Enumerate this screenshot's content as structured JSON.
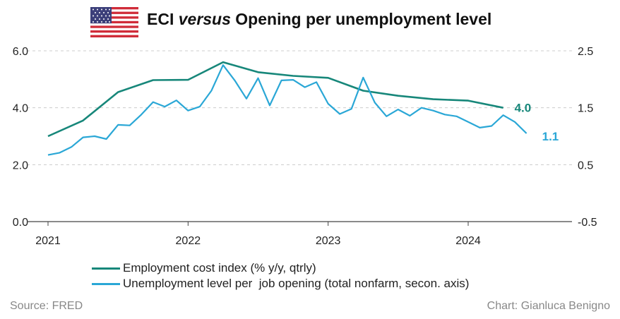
{
  "title_prefix": "ECI",
  "title_italic": "versus",
  "title_suffix": "Opening per unemployment level",
  "source": "Source: FRED",
  "credit": "Chart: Gianluca Benigno",
  "colors": {
    "eci": "#17877a",
    "unemp": "#2aa7d6",
    "grid": "#cccccc"
  },
  "chart_data": {
    "type": "line",
    "x_ticks": [
      "2021",
      "2022",
      "2023",
      "2024"
    ],
    "y_left_ticks": [
      "0.0",
      "2.0",
      "4.0",
      "6.0"
    ],
    "y_right_ticks": [
      "-0.5",
      "0.5",
      "1.5",
      "2.5"
    ],
    "y_left_lim": [
      0,
      6
    ],
    "y_right_lim": [
      -0.5,
      2.5
    ],
    "grid": true,
    "legend_position": "bottom",
    "series": [
      {
        "name": "Employment cost index (% y/y, qtrly)",
        "axis": "left",
        "end_label": "4.0",
        "x": [
          "2021-01",
          "2021-04",
          "2021-07",
          "2021-10",
          "2022-01",
          "2022-04",
          "2022-07",
          "2022-10",
          "2023-01",
          "2023-04",
          "2023-07",
          "2023-10",
          "2024-01",
          "2024-04"
        ],
        "values": [
          3.0,
          3.55,
          4.55,
          4.97,
          4.98,
          5.6,
          5.25,
          5.12,
          5.05,
          4.6,
          4.42,
          4.3,
          4.25,
          4.0
        ]
      },
      {
        "name": "Unemployment level per  job opening (total nonfarm, secon. axis)",
        "axis": "right",
        "end_label": "1.1",
        "x": [
          "2021-01",
          "2021-02",
          "2021-03",
          "2021-04",
          "2021-05",
          "2021-06",
          "2021-07",
          "2021-08",
          "2021-09",
          "2021-10",
          "2021-11",
          "2021-12",
          "2022-01",
          "2022-02",
          "2022-03",
          "2022-04",
          "2022-05",
          "2022-06",
          "2022-07",
          "2022-08",
          "2022-09",
          "2022-10",
          "2022-11",
          "2022-12",
          "2023-01",
          "2023-02",
          "2023-03",
          "2023-04",
          "2023-05",
          "2023-06",
          "2023-07",
          "2023-08",
          "2023-09",
          "2023-10",
          "2023-11",
          "2023-12",
          "2024-01",
          "2024-02",
          "2024-03",
          "2024-04",
          "2024-05",
          "2024-06"
        ],
        "values": [
          0.67,
          0.71,
          0.81,
          0.98,
          1.0,
          0.95,
          1.2,
          1.19,
          1.38,
          1.6,
          1.52,
          1.63,
          1.45,
          1.52,
          1.8,
          2.25,
          1.98,
          1.66,
          2.02,
          1.54,
          1.98,
          1.99,
          1.86,
          1.95,
          1.57,
          1.39,
          1.48,
          2.03,
          1.59,
          1.35,
          1.47,
          1.36,
          1.5,
          1.45,
          1.38,
          1.35,
          1.25,
          1.15,
          1.18,
          1.37,
          1.25,
          1.05
        ]
      }
    ]
  }
}
